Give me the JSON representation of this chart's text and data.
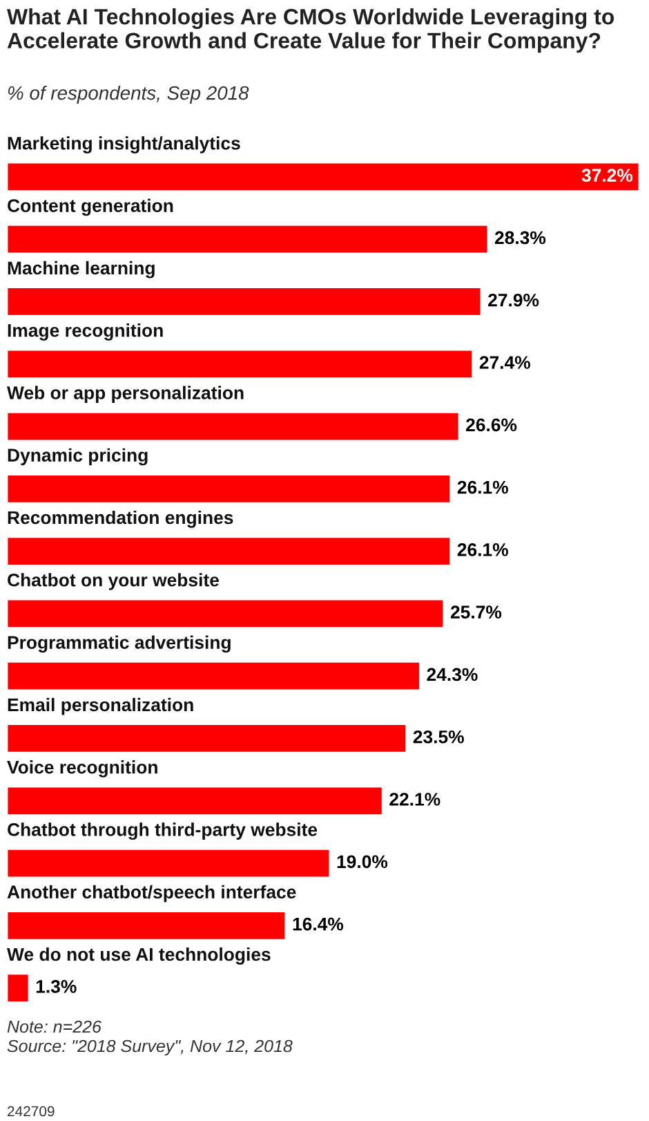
{
  "chart_data": {
    "type": "bar",
    "orientation": "horizontal",
    "title": "What AI Technologies Are CMOs Worldwide Leveraging to Accelerate Growth and Create Value for Their Company?",
    "subtitle": "% of respondents, Sep 2018",
    "categories": [
      "Marketing insight/analytics",
      "Content generation",
      "Machine learning",
      "Image recognition",
      "Web or app personalization",
      "Dynamic pricing",
      "Recommendation engines",
      "Chatbot on your website",
      "Programmatic advertising",
      "Email personalization",
      "Voice recognition",
      "Chatbot through third-party website",
      "Another chatbot/speech interface",
      "We do not use AI technologies"
    ],
    "values": [
      37.2,
      28.3,
      27.9,
      27.4,
      26.6,
      26.1,
      26.1,
      25.7,
      24.3,
      23.5,
      22.1,
      19.0,
      16.4,
      1.3
    ],
    "value_labels": [
      "37.2%",
      "28.3%",
      "27.9%",
      "27.4%",
      "26.6%",
      "26.1%",
      "26.1%",
      "25.7%",
      "24.3%",
      "23.5%",
      "22.1%",
      "19.0%",
      "16.4%",
      "1.3%"
    ],
    "color": "#ff0000",
    "annotations": [
      "Note: n=226",
      "Source: \"2018 Survey\", Nov 12, 2018",
      "242709"
    ]
  }
}
